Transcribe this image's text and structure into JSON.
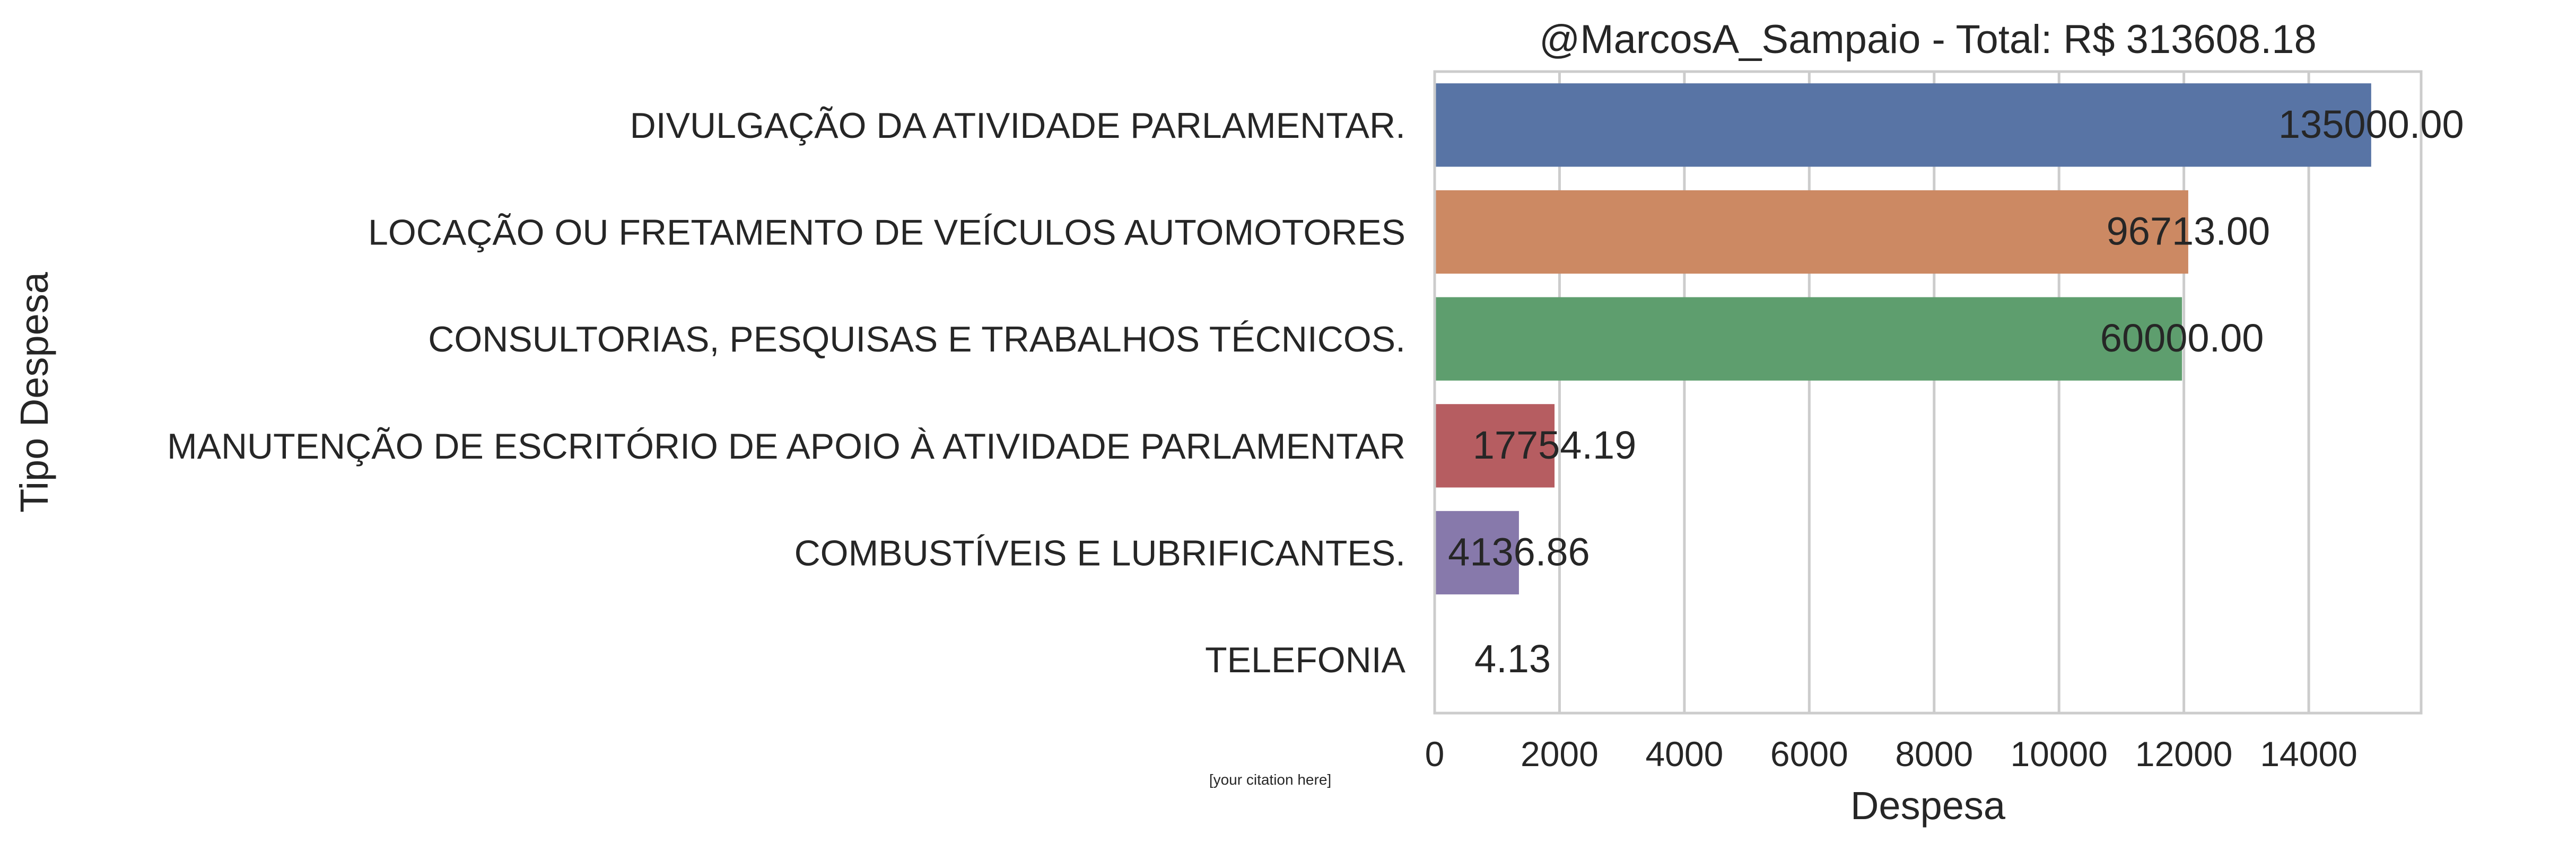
{
  "chart_data": {
    "type": "bar",
    "orientation": "horizontal",
    "title": "@MarcosA_Sampaio - Total: R$ 313608.18",
    "xlabel": "Despesa",
    "ylabel": "Tipo Despesa",
    "xlim": [
      0,
      15800
    ],
    "x_ticks": [
      0,
      2000,
      4000,
      6000,
      8000,
      10000,
      12000,
      14000
    ],
    "x_tick_labels": [
      "0",
      "2000",
      "4000",
      "6000",
      "8000",
      "10000",
      "12000",
      "14000"
    ],
    "grid": true,
    "categories": [
      "DIVULGAÇÃO DA ATIVIDADE PARLAMENTAR.",
      "LOCAÇÃO OU FRETAMENTO DE VEÍCULOS AUTOMOTORES",
      "CONSULTORIAS, PESQUISAS E TRABALHOS TÉCNICOS.",
      "MANUTENÇÃO DE ESCRITÓRIO DE APOIO À ATIVIDADE PARLAMENTAR",
      "COMBUSTÍVEIS E LUBRIFICANTES.",
      "TELEFONIA"
    ],
    "values": [
      15000,
      12070,
      11970,
      1920,
      1350,
      0
    ],
    "value_labels": [
      "135000.00",
      "96713.00",
      "60000.00",
      "17754.19",
      "4136.86",
      "4.13"
    ],
    "colors": [
      "#5874a5",
      "#cc8963",
      "#5e9e6e",
      "#b65d61",
      "#8779ab",
      "#8c8c8c"
    ],
    "annotation": "[your citation here]"
  }
}
